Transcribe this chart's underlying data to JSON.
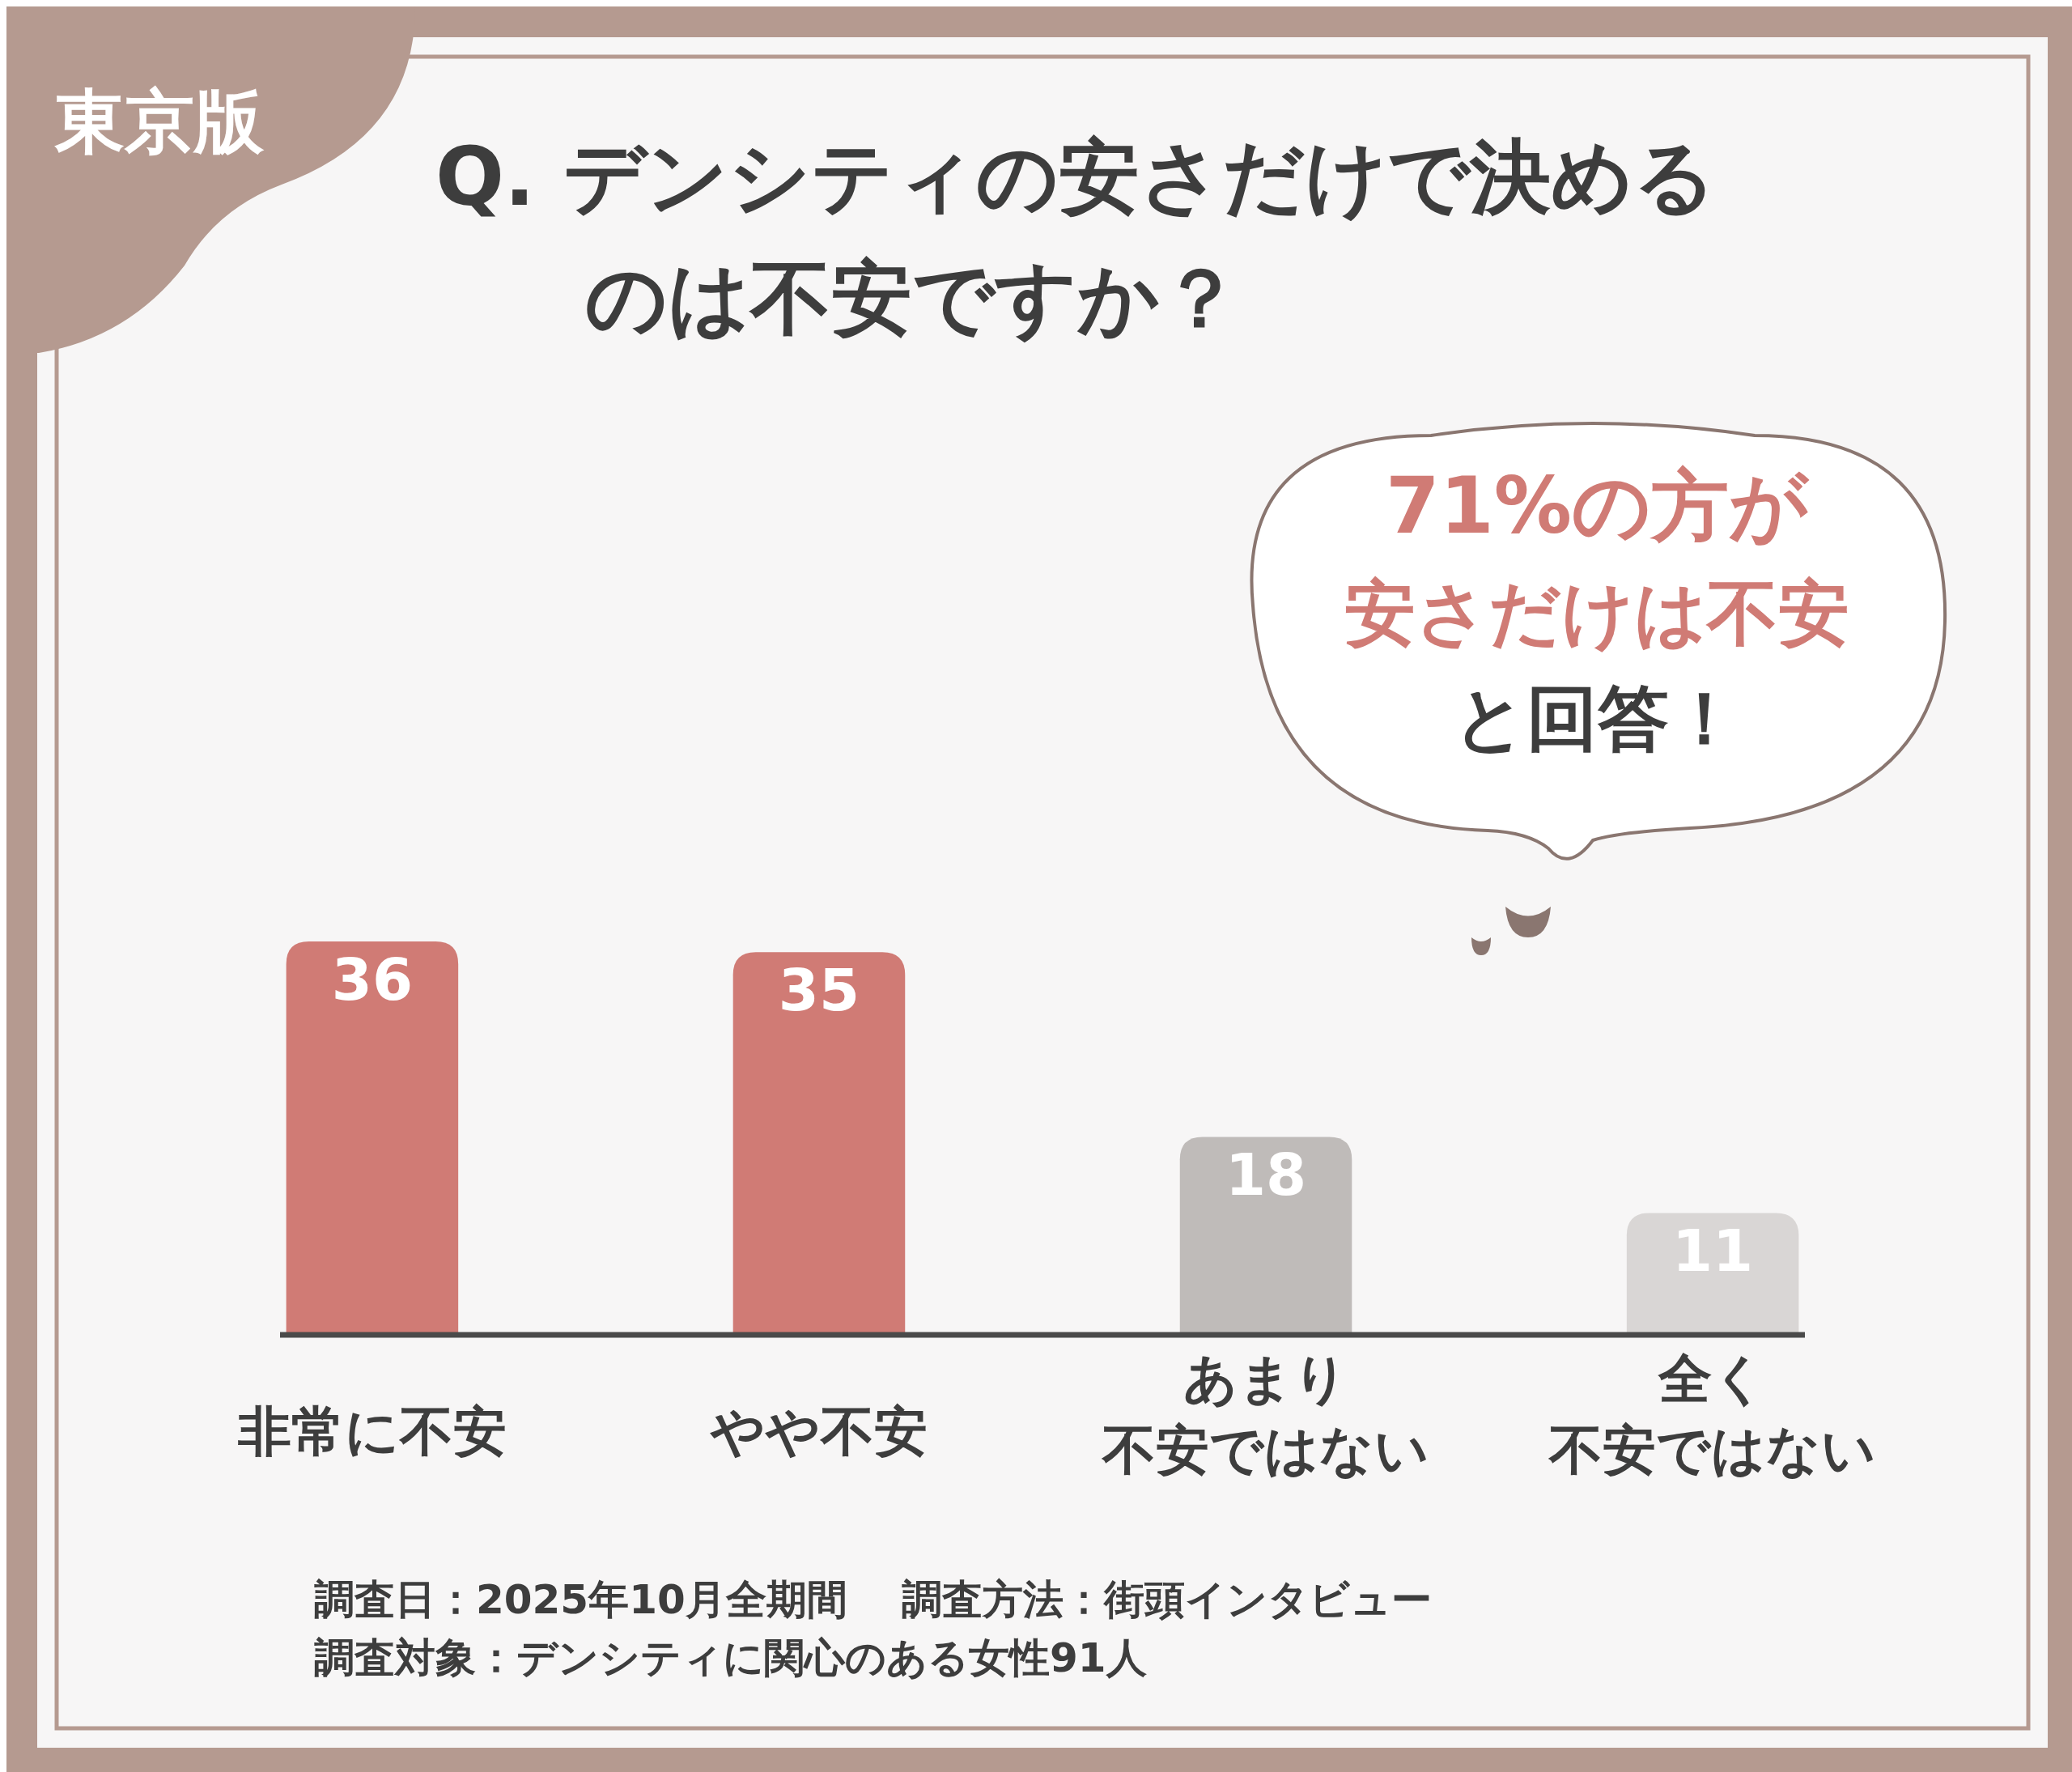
{
  "chart_data": {
    "type": "bar",
    "title": "Q. デンシティの安さだけで決めるのは不安ですか？",
    "subtitle": "東京版",
    "categories": [
      "非常に不安",
      "やや不安",
      "あまり不安ではない",
      "全く不安ではない"
    ],
    "values": [
      36,
      35,
      18,
      11
    ],
    "colors": [
      "#d07b75",
      "#d07b75",
      "#bfbbb9",
      "#d9d6d5"
    ],
    "data_labels": true,
    "annotations": [
      "71%の方が安さだけは不安と回答！",
      "調査日：2025年10月全期間　 調査方法：街頭インタビュー",
      "調査対象：デンシティに関心のある女性91人"
    ]
  }
}
